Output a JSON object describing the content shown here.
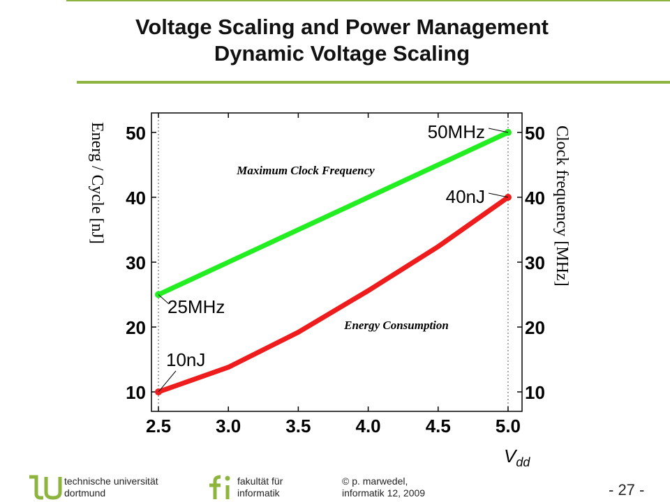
{
  "header": {
    "title_line1": "Voltage Scaling and Power Management",
    "title_line2": "Dynamic Voltage Scaling"
  },
  "chart_data": {
    "type": "line",
    "x": [
      2.5,
      3.0,
      3.5,
      4.0,
      4.5,
      5.0
    ],
    "series": [
      {
        "name": "Maximum Clock Frequency",
        "color": "#22ee22",
        "axis": "right",
        "values": [
          25,
          30,
          35,
          40,
          45,
          50
        ]
      },
      {
        "name": "Energy Consumption",
        "color": "#ee1c1c",
        "axis": "left",
        "values": [
          10,
          13.8,
          19.2,
          25.6,
          32.4,
          40
        ]
      }
    ],
    "xlim": [
      2.45,
      5.1
    ],
    "ylim": [
      7,
      53
    ],
    "x_ticks": [
      "2.5",
      "3.0",
      "3.5",
      "4.0",
      "4.5",
      "5.0"
    ],
    "y_ticks_left": [
      "10",
      "20",
      "30",
      "40",
      "50"
    ],
    "y_ticks_right": [
      "10",
      "20",
      "30",
      "40",
      "50"
    ],
    "ylabel_left": "Energ / Cycle   [nJ]",
    "ylabel_right": "Clock frequency   [MHz]",
    "xlabel_main": "V",
    "xlabel_sub": "dd",
    "annotations": [
      {
        "text": "50MHz",
        "x": 5.0,
        "y": 50
      },
      {
        "text": "40nJ",
        "x": 5.0,
        "y": 40
      },
      {
        "text": "25MHz",
        "x": 2.5,
        "y": 25
      },
      {
        "text": "10nJ",
        "x": 2.5,
        "y": 10
      }
    ],
    "vertical_guides": [
      2.5,
      5.0
    ],
    "grid": false
  },
  "footer": {
    "university_line1": "technische universität",
    "university_line2": "dortmund",
    "faculty_line1": "fakultät für",
    "faculty_line2": "informatik",
    "author_line1": "© p. marwedel,",
    "author_line2": "informatik 12,  2009",
    "page_number": "- 27 -",
    "logo_color": "#8db43e"
  }
}
